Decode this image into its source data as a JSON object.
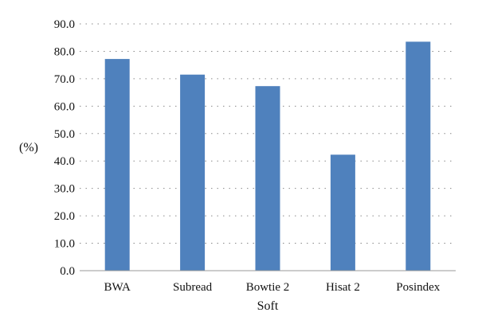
{
  "chart_data": {
    "type": "bar",
    "categories": [
      "BWA",
      "Subread",
      "Bowtie 2",
      "Hisat 2",
      "Posindex"
    ],
    "values": [
      77.2,
      71.5,
      67.3,
      42.3,
      83.5
    ],
    "y_ticks": [
      "0.0",
      "10.0",
      "20.0",
      "30.0",
      "40.0",
      "50.0",
      "60.0",
      "70.0",
      "80.0",
      "90.0"
    ],
    "xlabel": "Soft",
    "ylabel": "(%)",
    "ylim": [
      0,
      90
    ],
    "grid": "horizontal dotted",
    "bar_color": "#4f81bd"
  }
}
